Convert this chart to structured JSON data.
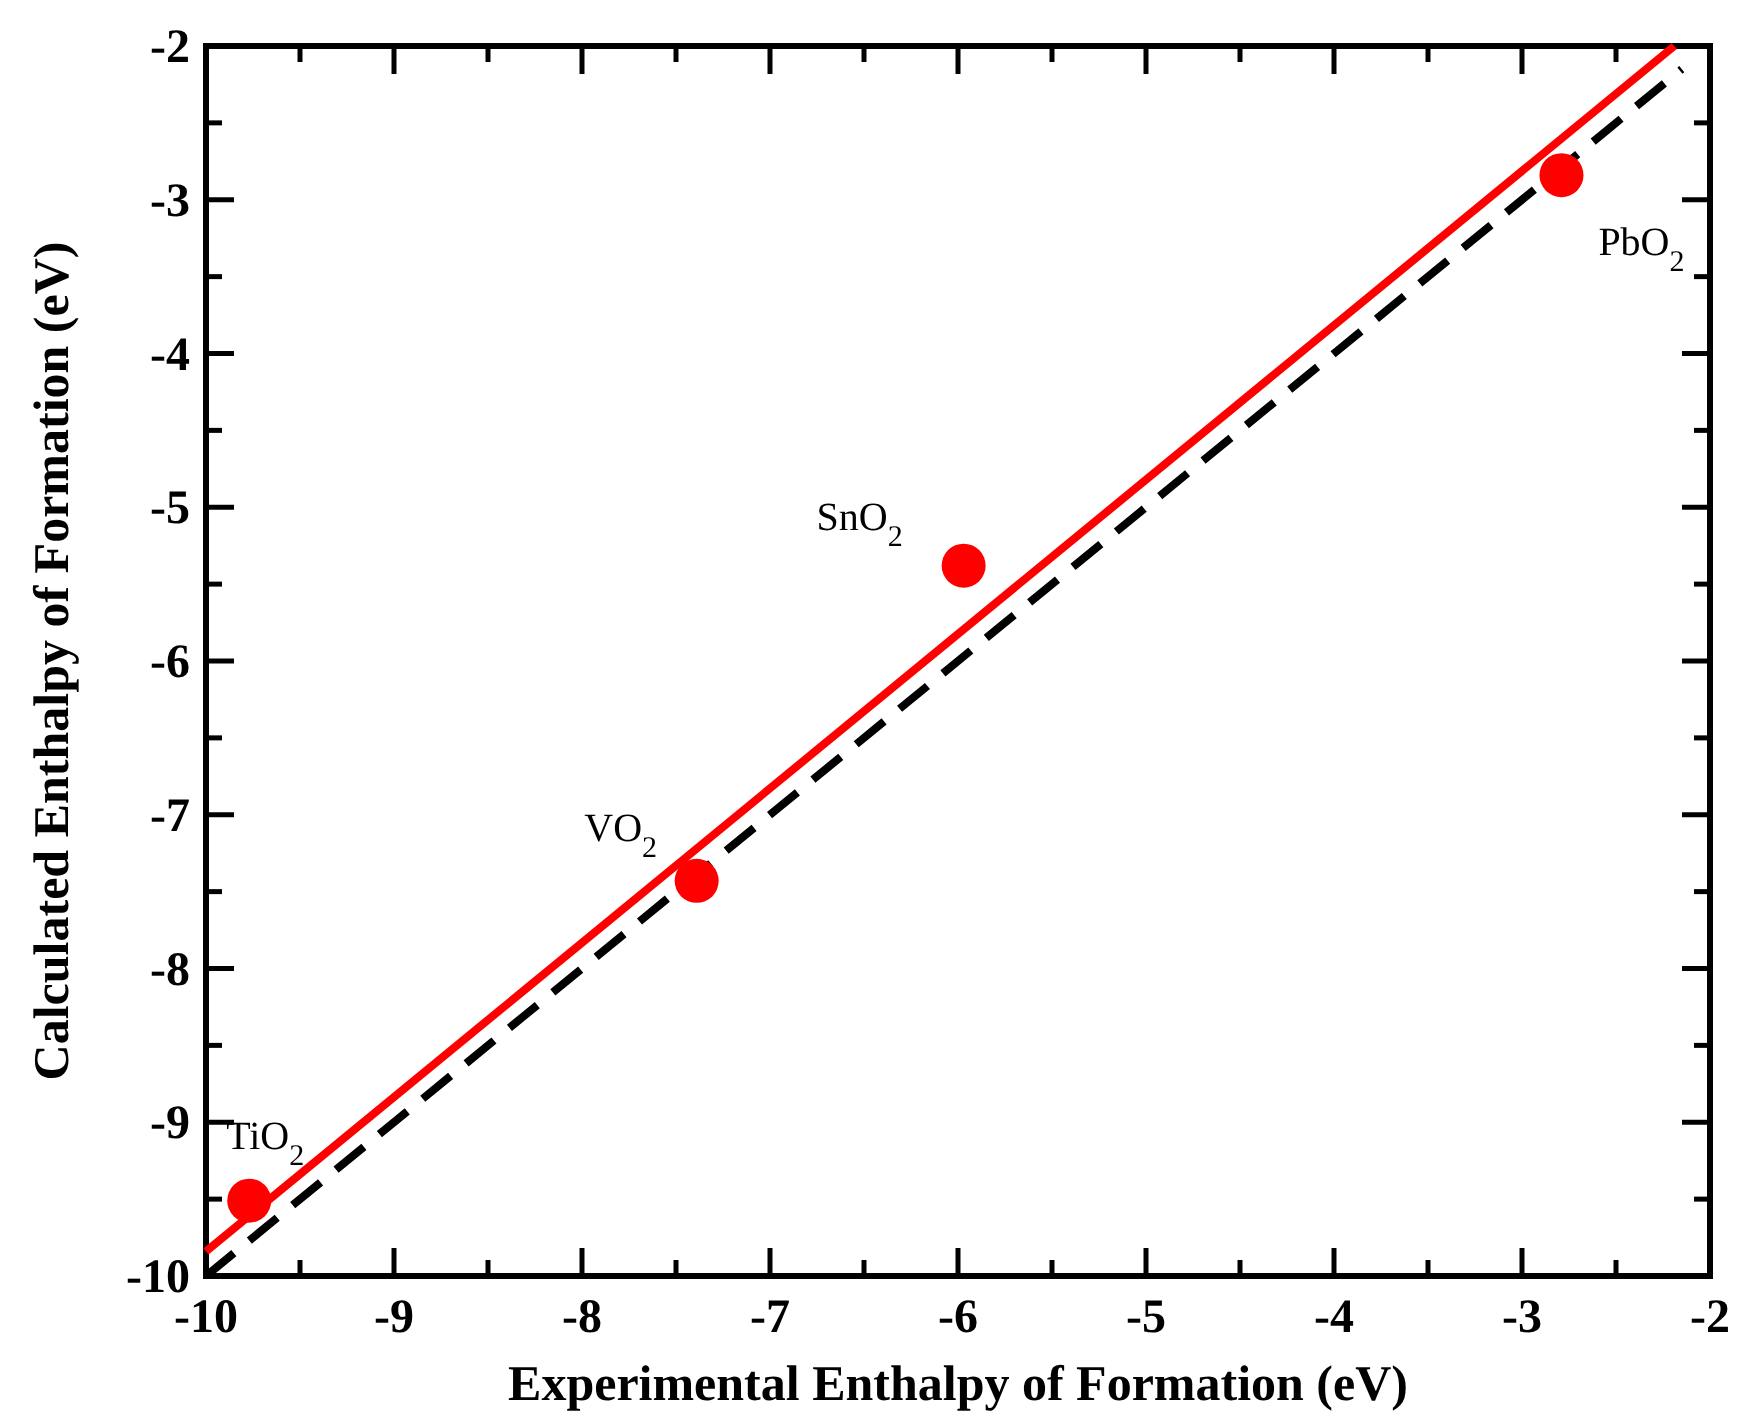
{
  "chart_data": {
    "type": "scatter",
    "xlabel": "Experimental Enthalpy of Formation (eV)",
    "ylabel": "Calculated Enthalpy of Formation (eV)",
    "xlim": [
      -10,
      -2
    ],
    "ylim": [
      -10,
      -2
    ],
    "xticks": [
      -10,
      {
        "value": -9.5,
        "label": null
      },
      -9,
      {
        "value": -8.5,
        "label": null
      },
      -8,
      {
        "value": -7.5,
        "label": null
      },
      -7,
      {
        "value": -6.5,
        "label": null
      },
      -6,
      {
        "value": -5.5,
        "label": null
      },
      -5,
      {
        "value": -4.5,
        "label": null
      },
      -4,
      {
        "value": -3.5,
        "label": null
      },
      -3,
      {
        "value": -2.5,
        "label": null
      },
      -2
    ],
    "yticks": [
      -10,
      {
        "value": -9.5,
        "label": null
      },
      -9,
      {
        "value": -8.5,
        "label": null
      },
      -8,
      {
        "value": -7.5,
        "label": null
      },
      -7,
      {
        "value": -6.5,
        "label": null
      },
      -6,
      {
        "value": -5.5,
        "label": null
      },
      -5,
      {
        "value": -4.5,
        "label": null
      },
      -4,
      {
        "value": -3.5,
        "label": null
      },
      -3,
      {
        "value": -2.5,
        "label": null
      },
      -2
    ],
    "grid": false,
    "series": [
      {
        "type": "line",
        "color": "#000000",
        "line_style": "dashed",
        "marker": "none",
        "x": [
          -10,
          -2.15
        ],
        "values": [
          -10,
          -2.15
        ]
      },
      {
        "type": "line",
        "color": "#ff0000",
        "line_style": "solid",
        "marker": "none",
        "x": [
          -10,
          -2.19
        ],
        "values": [
          -9.84,
          -2
        ]
      },
      {
        "color": "#ff0000",
        "marker": "circle",
        "x": [
          -9.77,
          -7.39,
          -5.97,
          -2.79
        ],
        "values": [
          -9.51,
          -7.43,
          -5.38,
          -2.84
        ]
      }
    ],
    "annotations": [
      {
        "text": "TiO$_{2}$",
        "x": -9.77,
        "y": -9.51
      },
      {
        "text": "VO$_{2}$",
        "x": -7.39,
        "y": -7.43
      },
      {
        "text": "SnO$_{2}$",
        "x": -5.97,
        "y": -5.38
      },
      {
        "text": "PbO$_{2}$",
        "x": -2.79,
        "y": -2.84
      }
    ]
  }
}
